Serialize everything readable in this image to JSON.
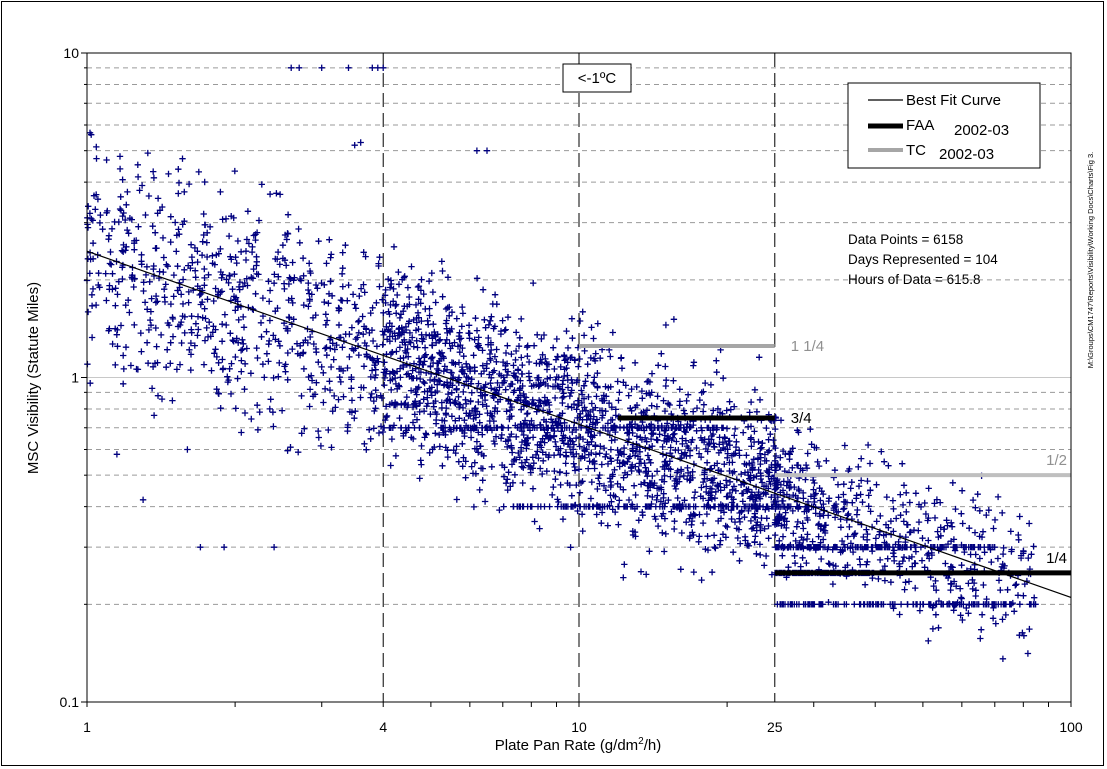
{
  "chart_data": {
    "type": "scatter",
    "title": "",
    "xlabel": "Plate Pan Rate (g/dm²/h)",
    "xlabel_parts": [
      "Plate Pan Rate (g/dm",
      "2",
      "/h)"
    ],
    "ylabel": "MSC Visibility (Statute Miles)",
    "x_scale": "log",
    "y_scale": "log",
    "xlim": [
      1,
      100
    ],
    "ylim": [
      0.1,
      10
    ],
    "x_ticks": [
      1,
      4,
      10,
      25,
      100
    ],
    "x_tick_labels": [
      "1",
      "4",
      "10",
      "25",
      "100"
    ],
    "y_ticks": [
      0.1,
      1,
      10
    ],
    "y_tick_labels": [
      "0.1",
      "1",
      "10"
    ],
    "grid": "dashed horizontal minor lines, dashed vertical lines at x = 4, 10, 25",
    "annotation_box": "<-1ºC",
    "stats": [
      "Data Points = 6158",
      "Days Represented = 104",
      "Hours of Data = 615.8"
    ],
    "side_note": "M:\\Groups\\CM1747\\Reports\\Visibility\\Working Docs\\Charts\\Fig 3.",
    "legend": {
      "position": "top-right",
      "entries": [
        {
          "label": "Best Fit Curve",
          "suffix": "",
          "color": "#000000",
          "width": 1.2
        },
        {
          "label": "FAA",
          "suffix": "2002-03",
          "color": "#000000",
          "width": 5
        },
        {
          "label": "TC",
          "suffix": "2002-03",
          "color": "#a6a6a6",
          "width": 4
        }
      ]
    },
    "scatter_series": {
      "name": "",
      "marker": "+",
      "color": "#00007f",
      "n_points": 6158,
      "clusters": [
        {
          "x_range": [
            1,
            4
          ],
          "y_center_at_x1": 2.4,
          "y_spread": 2.2
        },
        {
          "x_range": [
            4,
            25
          ],
          "y_center_trend": "best_fit",
          "y_spread": 1.9
        },
        {
          "x_range": [
            25,
            85
          ],
          "y_center_trend": "best_fit",
          "y_spread": 1.6
        }
      ]
    },
    "best_fit_curve": {
      "x": [
        1,
        100
      ],
      "y": [
        2.45,
        0.21
      ],
      "color": "#000000"
    },
    "threshold_lines": [
      {
        "label": "1 1/4",
        "series": "TC",
        "x": [
          10,
          25
        ],
        "y": 1.25,
        "color": "#a6a6a6"
      },
      {
        "label": "3/4",
        "series": "FAA",
        "x": [
          12,
          25
        ],
        "y": 0.75,
        "color": "#000000"
      },
      {
        "label": "1/2",
        "series": "TC",
        "x": [
          25,
          100
        ],
        "y": 0.5,
        "color": "#bfbfbf"
      },
      {
        "label": "1/4",
        "series": "FAA",
        "x": [
          25,
          100
        ],
        "y": 0.25,
        "color": "#000000"
      }
    ],
    "horizontal_point_bands": [
      {
        "y": 0.7,
        "x": [
          4,
          20
        ]
      },
      {
        "y": 0.4,
        "x": [
          7,
          30
        ]
      },
      {
        "y": 0.3,
        "x": [
          25,
          70
        ]
      },
      {
        "y": 0.25,
        "x": [
          25,
          40
        ]
      },
      {
        "y": 0.2,
        "x": [
          25,
          85
        ]
      }
    ],
    "outlier_points": [
      {
        "x": 2.6,
        "y": 9
      },
      {
        "x": 3.0,
        "y": 9
      },
      {
        "x": 3.4,
        "y": 9
      },
      {
        "x": 3.8,
        "y": 9
      },
      {
        "x": 3.9,
        "y": 9
      },
      {
        "x": 4.0,
        "y": 9
      },
      {
        "x": 2.7,
        "y": 9
      },
      {
        "x": 3.5,
        "y": 5.2
      },
      {
        "x": 3.6,
        "y": 5.3
      },
      {
        "x": 6.2,
        "y": 5.0
      },
      {
        "x": 6.5,
        "y": 5.0
      },
      {
        "x": 1.3,
        "y": 0.42
      },
      {
        "x": 1.7,
        "y": 0.3
      },
      {
        "x": 1.9,
        "y": 0.3
      },
      {
        "x": 2.4,
        "y": 0.3
      },
      {
        "x": 1.15,
        "y": 0.58
      },
      {
        "x": 1.6,
        "y": 0.6
      },
      {
        "x": 1.02,
        "y": 5.6
      }
    ]
  }
}
